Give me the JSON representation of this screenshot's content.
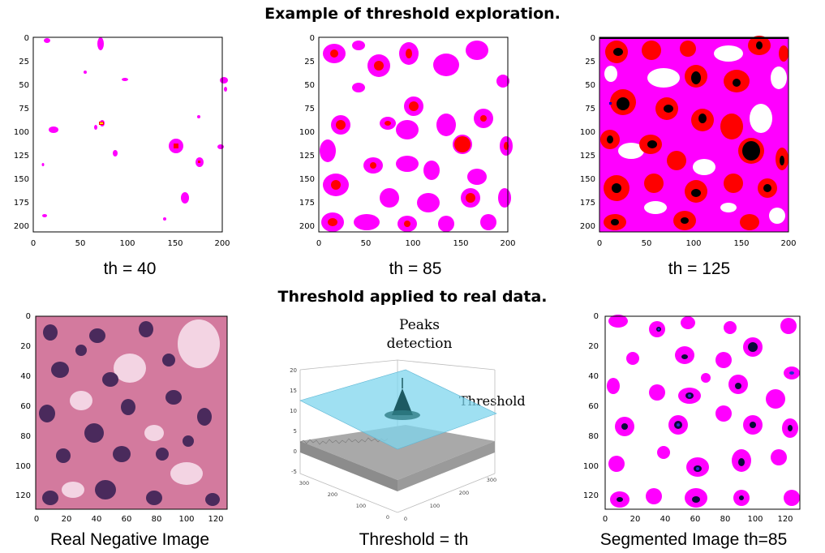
{
  "titles": {
    "top": "Example of threshold exploration.",
    "bottom": "Threshold applied to real data."
  },
  "top_panels": [
    {
      "caption": "th = 40",
      "xticks": [
        "0",
        "50",
        "100",
        "150",
        "200"
      ],
      "yticks": [
        "0",
        "25",
        "50",
        "75",
        "100",
        "125",
        "150",
        "175",
        "200"
      ]
    },
    {
      "caption": "th = 85",
      "xticks": [
        "0",
        "50",
        "100",
        "150",
        "200"
      ],
      "yticks": [
        "0",
        "25",
        "50",
        "75",
        "100",
        "125",
        "150",
        "175",
        "200"
      ]
    },
    {
      "caption": "th = 125",
      "xticks": [
        "0",
        "50",
        "100",
        "150",
        "200"
      ],
      "yticks": [
        "0",
        "25",
        "50",
        "75",
        "100",
        "125",
        "150",
        "175",
        "200"
      ]
    }
  ],
  "bottom_panels": [
    {
      "caption": "Real Negative Image",
      "xticks": [
        "0",
        "20",
        "40",
        "60",
        "80",
        "100",
        "120"
      ],
      "yticks": [
        "0",
        "20",
        "40",
        "60",
        "80",
        "100",
        "120"
      ]
    },
    {
      "caption": "Threshold = th",
      "labels": {
        "peaks": [
          "Peaks",
          "detection"
        ],
        "threshold": "Threshold"
      },
      "zticks": [
        "20",
        "15",
        "10",
        "5",
        "0",
        "-5"
      ],
      "x3dticks": [
        "300",
        "200",
        "100",
        "0"
      ],
      "y3dticks": [
        "0",
        "100",
        "200",
        "300"
      ]
    },
    {
      "caption": "Segmented Image th=85",
      "xticks": [
        "0",
        "20",
        "40",
        "60",
        "80",
        "100",
        "120"
      ],
      "yticks": [
        "0",
        "20",
        "40",
        "60",
        "80",
        "100",
        "120"
      ]
    }
  ],
  "colors": {
    "magenta": "#ff00ff",
    "red": "#ff0000",
    "black": "#000000",
    "blue": "#0000cc",
    "plane": "#7fd6ee",
    "tissue": "#d37a9e"
  }
}
